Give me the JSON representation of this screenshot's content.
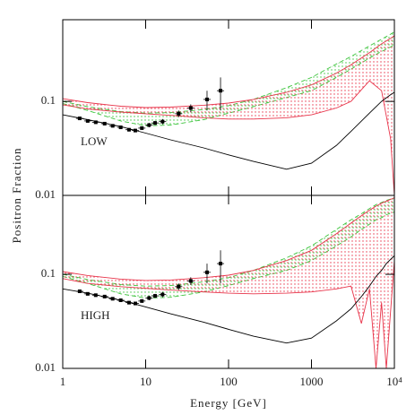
{
  "chart_data": [
    {
      "type": "line",
      "log_x": true,
      "log_y": true,
      "ylabel": "Positron Fraction",
      "annotation": "LOW",
      "xlim": [
        1,
        10000
      ],
      "xticks": [
        1,
        10,
        100,
        1000,
        {
          "value": 10000,
          "label": "10⁴"
        }
      ],
      "ylim": [
        0.01,
        0.74
      ],
      "yticks": [
        0.01,
        0.1
      ],
      "x": [
        1,
        2,
        5,
        10,
        20,
        50,
        100,
        200,
        500,
        1000,
        2000,
        3000,
        5000,
        7000,
        9000,
        10000
      ],
      "bands": [
        {
          "color": "#3cc43c",
          "dash": true,
          "upper": [
            0.1,
            0.088,
            0.078,
            0.075,
            0.076,
            0.082,
            0.09,
            0.105,
            0.14,
            0.18,
            0.25,
            0.3,
            0.39,
            0.46,
            0.52,
            0.55
          ],
          "lower": [
            0.095,
            0.08,
            0.062,
            0.055,
            0.056,
            0.064,
            0.075,
            0.088,
            0.11,
            0.13,
            0.18,
            0.22,
            0.29,
            0.34,
            0.38,
            0.4
          ]
        },
        {
          "color": "#e8344a",
          "dash": false,
          "upper": [
            0.107,
            0.097,
            0.089,
            0.086,
            0.087,
            0.091,
            0.096,
            0.105,
            0.125,
            0.15,
            0.2,
            0.245,
            0.33,
            0.41,
            0.47,
            0.5
          ],
          "lower": [
            0.092,
            0.083,
            0.077,
            0.074,
            0.071,
            0.067,
            0.065,
            0.065,
            0.067,
            0.072,
            0.085,
            0.1,
            0.166,
            0.13,
            0.04,
            0.01
          ]
        }
      ],
      "series": [
        {
          "color": "#000000",
          "values": [
            0.072,
            0.064,
            0.054,
            0.046,
            0.039,
            0.032,
            0.027,
            0.023,
            0.019,
            0.022,
            0.034,
            0.048,
            0.075,
            0.1,
            0.118,
            0.125
          ]
        }
      ],
      "points": {
        "color": "#000000",
        "x": [
          1.6,
          2,
          2.5,
          3.2,
          4,
          5,
          6.3,
          7.5,
          9,
          11,
          13,
          16,
          25,
          35,
          55,
          80
        ],
        "values": [
          0.066,
          0.062,
          0.06,
          0.058,
          0.055,
          0.053,
          0.05,
          0.049,
          0.052,
          0.056,
          0.059,
          0.061,
          0.074,
          0.085,
          0.105,
          0.13
        ],
        "errors": [
          0.002,
          0.002,
          0.002,
          0.002,
          0.002,
          0.002,
          0.002,
          0.002,
          0.002,
          0.003,
          0.003,
          0.004,
          0.006,
          0.008,
          0.025,
          0.05
        ]
      }
    },
    {
      "type": "line",
      "log_x": true,
      "log_y": true,
      "xlabel": "Energy [GeV]",
      "annotation": "HIGH",
      "xlim": [
        1,
        10000
      ],
      "xticks": [
        1,
        10,
        100,
        1000,
        {
          "value": 10000,
          "label": "10⁴"
        }
      ],
      "ylim": [
        0.01,
        0.69
      ],
      "yticks": [
        0.01,
        0.1
      ],
      "x": [
        1,
        2,
        5,
        10,
        20,
        50,
        100,
        200,
        500,
        1000,
        2000,
        3000,
        4000,
        5000,
        6000,
        7000,
        8000,
        10000
      ],
      "bands": [
        {
          "color": "#3cc43c",
          "dash": true,
          "upper": [
            0.1,
            0.088,
            0.078,
            0.075,
            0.076,
            0.083,
            0.092,
            0.11,
            0.15,
            0.2,
            0.3,
            0.38,
            0.44,
            0.5,
            0.55,
            0.58,
            0.61,
            0.65
          ],
          "lower": [
            0.095,
            0.08,
            0.062,
            0.056,
            0.057,
            0.065,
            0.076,
            0.09,
            0.11,
            0.14,
            0.2,
            0.25,
            0.3,
            0.34,
            0.38,
            0.4,
            0.43,
            0.46
          ]
        },
        {
          "color": "#e8344a",
          "dash": false,
          "upper": [
            0.107,
            0.097,
            0.089,
            0.086,
            0.087,
            0.092,
            0.098,
            0.11,
            0.14,
            0.18,
            0.27,
            0.35,
            0.42,
            0.48,
            0.53,
            0.57,
            0.6,
            0.65
          ],
          "lower": [
            0.09,
            0.08,
            0.074,
            0.071,
            0.068,
            0.065,
            0.063,
            0.062,
            0.063,
            0.065,
            0.07,
            0.075,
            0.03,
            0.07,
            0.01,
            0.05,
            0.01,
            0.14
          ]
        }
      ],
      "series": [
        {
          "color": "#000000",
          "values": [
            0.07,
            0.063,
            0.053,
            0.045,
            0.038,
            0.031,
            0.026,
            0.022,
            0.0186,
            0.021,
            0.032,
            0.043,
            0.058,
            0.075,
            0.095,
            0.11,
            0.13,
            0.158
          ]
        }
      ],
      "points": {
        "color": "#000000",
        "x": [
          1.6,
          2,
          2.5,
          3.2,
          4,
          5,
          6.3,
          7.5,
          9,
          11,
          13,
          16,
          25,
          35,
          55,
          80
        ],
        "values": [
          0.066,
          0.062,
          0.06,
          0.058,
          0.055,
          0.053,
          0.05,
          0.049,
          0.052,
          0.056,
          0.059,
          0.061,
          0.074,
          0.085,
          0.105,
          0.13
        ],
        "errors": [
          0.002,
          0.002,
          0.002,
          0.002,
          0.002,
          0.002,
          0.002,
          0.002,
          0.002,
          0.003,
          0.003,
          0.004,
          0.006,
          0.008,
          0.025,
          0.05
        ]
      }
    }
  ]
}
